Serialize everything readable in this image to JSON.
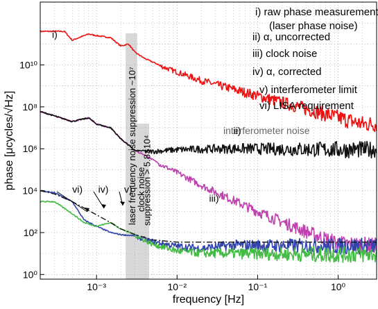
{
  "chart_data": {
    "type": "line",
    "xscale": "log",
    "yscale": "log",
    "xlabel": "frequency [Hz]",
    "ylabel": "phase [μcycles/√Hz]",
    "xlim": [
      0.0002,
      3.0
    ],
    "ylim": [
      0.6,
      10000000000000.0
    ],
    "grid": "on (minor dotted)",
    "x_ticks": [
      {
        "value": 0.001,
        "label": "10⁻³"
      },
      {
        "value": 0.01,
        "label": "10⁻²"
      },
      {
        "value": 0.1,
        "label": "10⁻¹"
      },
      {
        "value": 1,
        "label": "10⁰"
      }
    ],
    "y_ticks": [
      {
        "value": 1,
        "label": "10⁰"
      },
      {
        "value": 100,
        "label": "10²"
      },
      {
        "value": 10000,
        "label": "10⁴"
      },
      {
        "value": 1000000,
        "label": "10⁶"
      },
      {
        "value": 100000000,
        "label": "10⁸"
      },
      {
        "value": 10000000000,
        "label": "10¹⁰"
      }
    ],
    "legend": {
      "placement": "top-right",
      "entries": [
        "i) raw phase measurement",
        "(laser phase noise)",
        "ii) α, uncorrected",
        "iii) clock noise",
        "iv) α, corrected",
        "v) interferometer limit",
        "vi) LISA requirement"
      ]
    },
    "series": [
      {
        "name": "i)",
        "color": "#ee1111",
        "x": [
          0.0002,
          0.0004,
          0.0005,
          0.0006,
          0.0008,
          0.001,
          0.0015,
          0.002,
          0.0025,
          0.003,
          0.004,
          0.006,
          0.01,
          0.02,
          0.05,
          0.1,
          0.2,
          0.5,
          1.0,
          2.0,
          3.0
        ],
        "y": [
          400000000000,
          400000000000,
          150000000000,
          200000000000,
          300000000000,
          250000000000,
          200000000000,
          80000000000,
          100000000000,
          40000000000,
          20000000000,
          10000000000,
          5000000000,
          2000000000,
          800000000,
          400000000,
          200000000,
          80000000,
          40000000,
          20000000,
          20000000
        ],
        "noisy_from": 0.006
      },
      {
        "name": "iii)",
        "color": "#c040b0",
        "x": [
          0.0002,
          0.0005,
          0.0008,
          0.001,
          0.0015,
          0.002,
          0.0025,
          0.003,
          0.004,
          0.006,
          0.01,
          0.02,
          0.05,
          0.1,
          0.2,
          0.5,
          1.0,
          3.0
        ],
        "y": [
          60000000,
          20000000,
          30000000,
          15000000,
          10000000,
          3000000,
          1500000,
          800000,
          500000,
          200000,
          80000,
          20000,
          4000,
          1200,
          400,
          100,
          40,
          30
        ],
        "noisy_from": 0.006
      },
      {
        "name": "ii)",
        "color": "#111111",
        "x": [
          0.0002,
          0.0005,
          0.0008,
          0.001,
          0.0015,
          0.002,
          0.0025,
          0.003,
          0.005,
          0.01,
          0.02,
          0.05,
          0.1,
          0.5,
          1.0,
          3.0
        ],
        "y": [
          60000000,
          20000000,
          30000000,
          15000000,
          10000000,
          3000000,
          1500000,
          800000,
          800000,
          1000000,
          1100000,
          1200000,
          1200000,
          1200000,
          1200000,
          1200000
        ],
        "noisy_from": 0.004
      },
      {
        "name": "iv)",
        "color": "#3344aa",
        "x": [
          0.0002,
          0.0003,
          0.0005,
          0.0007,
          0.001,
          0.0015,
          0.002,
          0.003,
          0.005,
          0.01,
          0.02,
          0.05,
          0.1,
          0.5,
          1.0,
          3.0
        ],
        "y": [
          10000,
          8000,
          3000,
          400,
          200,
          100,
          80,
          70,
          40,
          25,
          20,
          30,
          30,
          30,
          30,
          30
        ],
        "noisy_from": 0.003
      },
      {
        "name": "vi)",
        "color": "#44bb44",
        "x": [
          0.0002,
          0.0003,
          0.0005,
          0.0007,
          0.001,
          0.0015,
          0.002,
          0.003,
          0.005,
          0.01,
          0.02,
          0.05,
          0.1,
          0.5,
          1.0,
          3.0
        ],
        "y": [
          3000,
          3000,
          800,
          300,
          200,
          300,
          150,
          80,
          30,
          15,
          12,
          12,
          12,
          12,
          12,
          12
        ],
        "noisy_from": 0.003
      },
      {
        "name": "v)",
        "color": "#111111",
        "dash": "dashdot",
        "x": [
          0.0002,
          0.0003,
          0.0005,
          0.0007,
          0.001,
          0.0015,
          0.002,
          0.003,
          0.005,
          0.01,
          0.1,
          3.0
        ],
        "y": [
          10000,
          7000,
          3000,
          1500,
          700,
          300,
          150,
          80,
          45,
          35,
          35,
          35
        ]
      }
    ],
    "annotations": {
      "laser_band": {
        "x": [
          0.0023,
          0.0032
        ],
        "text": "laser frequency noise suppression ~10⁷"
      },
      "clock_band": {
        "x": [
          0.0032,
          0.0045
        ],
        "text": "clock noise",
        "text2": "suppression > 5.8×10⁴"
      },
      "curve_labels": [
        {
          "text": "i)",
          "x": 0.00028,
          "y": 200000000000
        },
        {
          "text": "ii)",
          "x": 0.05,
          "y": 5000000
        },
        {
          "text": "iii)",
          "x": 0.025,
          "y": 3000
        },
        {
          "text": "vi)",
          "x": 0.0005,
          "y": 8000
        },
        {
          "text": "iv)",
          "x": 0.00105,
          "y": 8000
        },
        {
          "text": "v)",
          "x": 0.0022,
          "y": 8000
        }
      ],
      "faded_text": "interferometer noise"
    }
  }
}
